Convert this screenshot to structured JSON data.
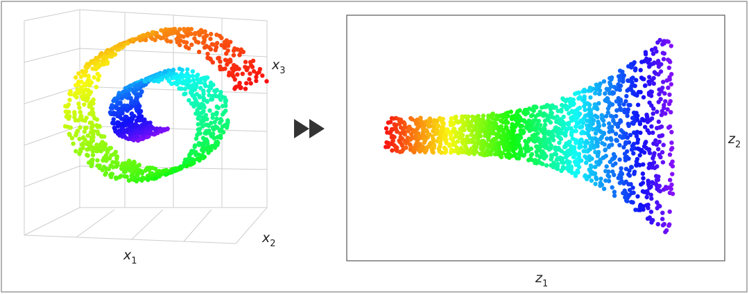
{
  "left_plot": {
    "axis_labels": [
      {
        "text": "x",
        "sub": "1"
      },
      {
        "text": "x",
        "sub": "2"
      },
      {
        "text": "x",
        "sub": "3"
      }
    ]
  },
  "right_plot": {
    "axis_labels": [
      {
        "text": "z",
        "sub": "1"
      },
      {
        "text": "z",
        "sub": "2"
      }
    ]
  }
}
